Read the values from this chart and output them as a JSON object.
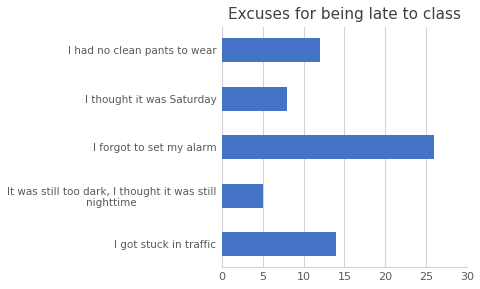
{
  "title": "Excuses for being late to class",
  "categories": [
    "I got stuck in traffic",
    "It was still too dark, I thought it was still\nnighttime",
    "I forgot to set my alarm",
    "I thought it was Saturday",
    "I had no clean pants to wear"
  ],
  "values": [
    14,
    5,
    26,
    8,
    12
  ],
  "bar_color": "#4472C4",
  "xlim": [
    0,
    30
  ],
  "xticks": [
    0,
    5,
    10,
    15,
    20,
    25,
    30
  ],
  "title_fontsize": 11,
  "label_fontsize": 7.5,
  "tick_fontsize": 8,
  "background_color": "#ffffff",
  "grid_color": "#d4d4d4",
  "text_color": "#595959"
}
